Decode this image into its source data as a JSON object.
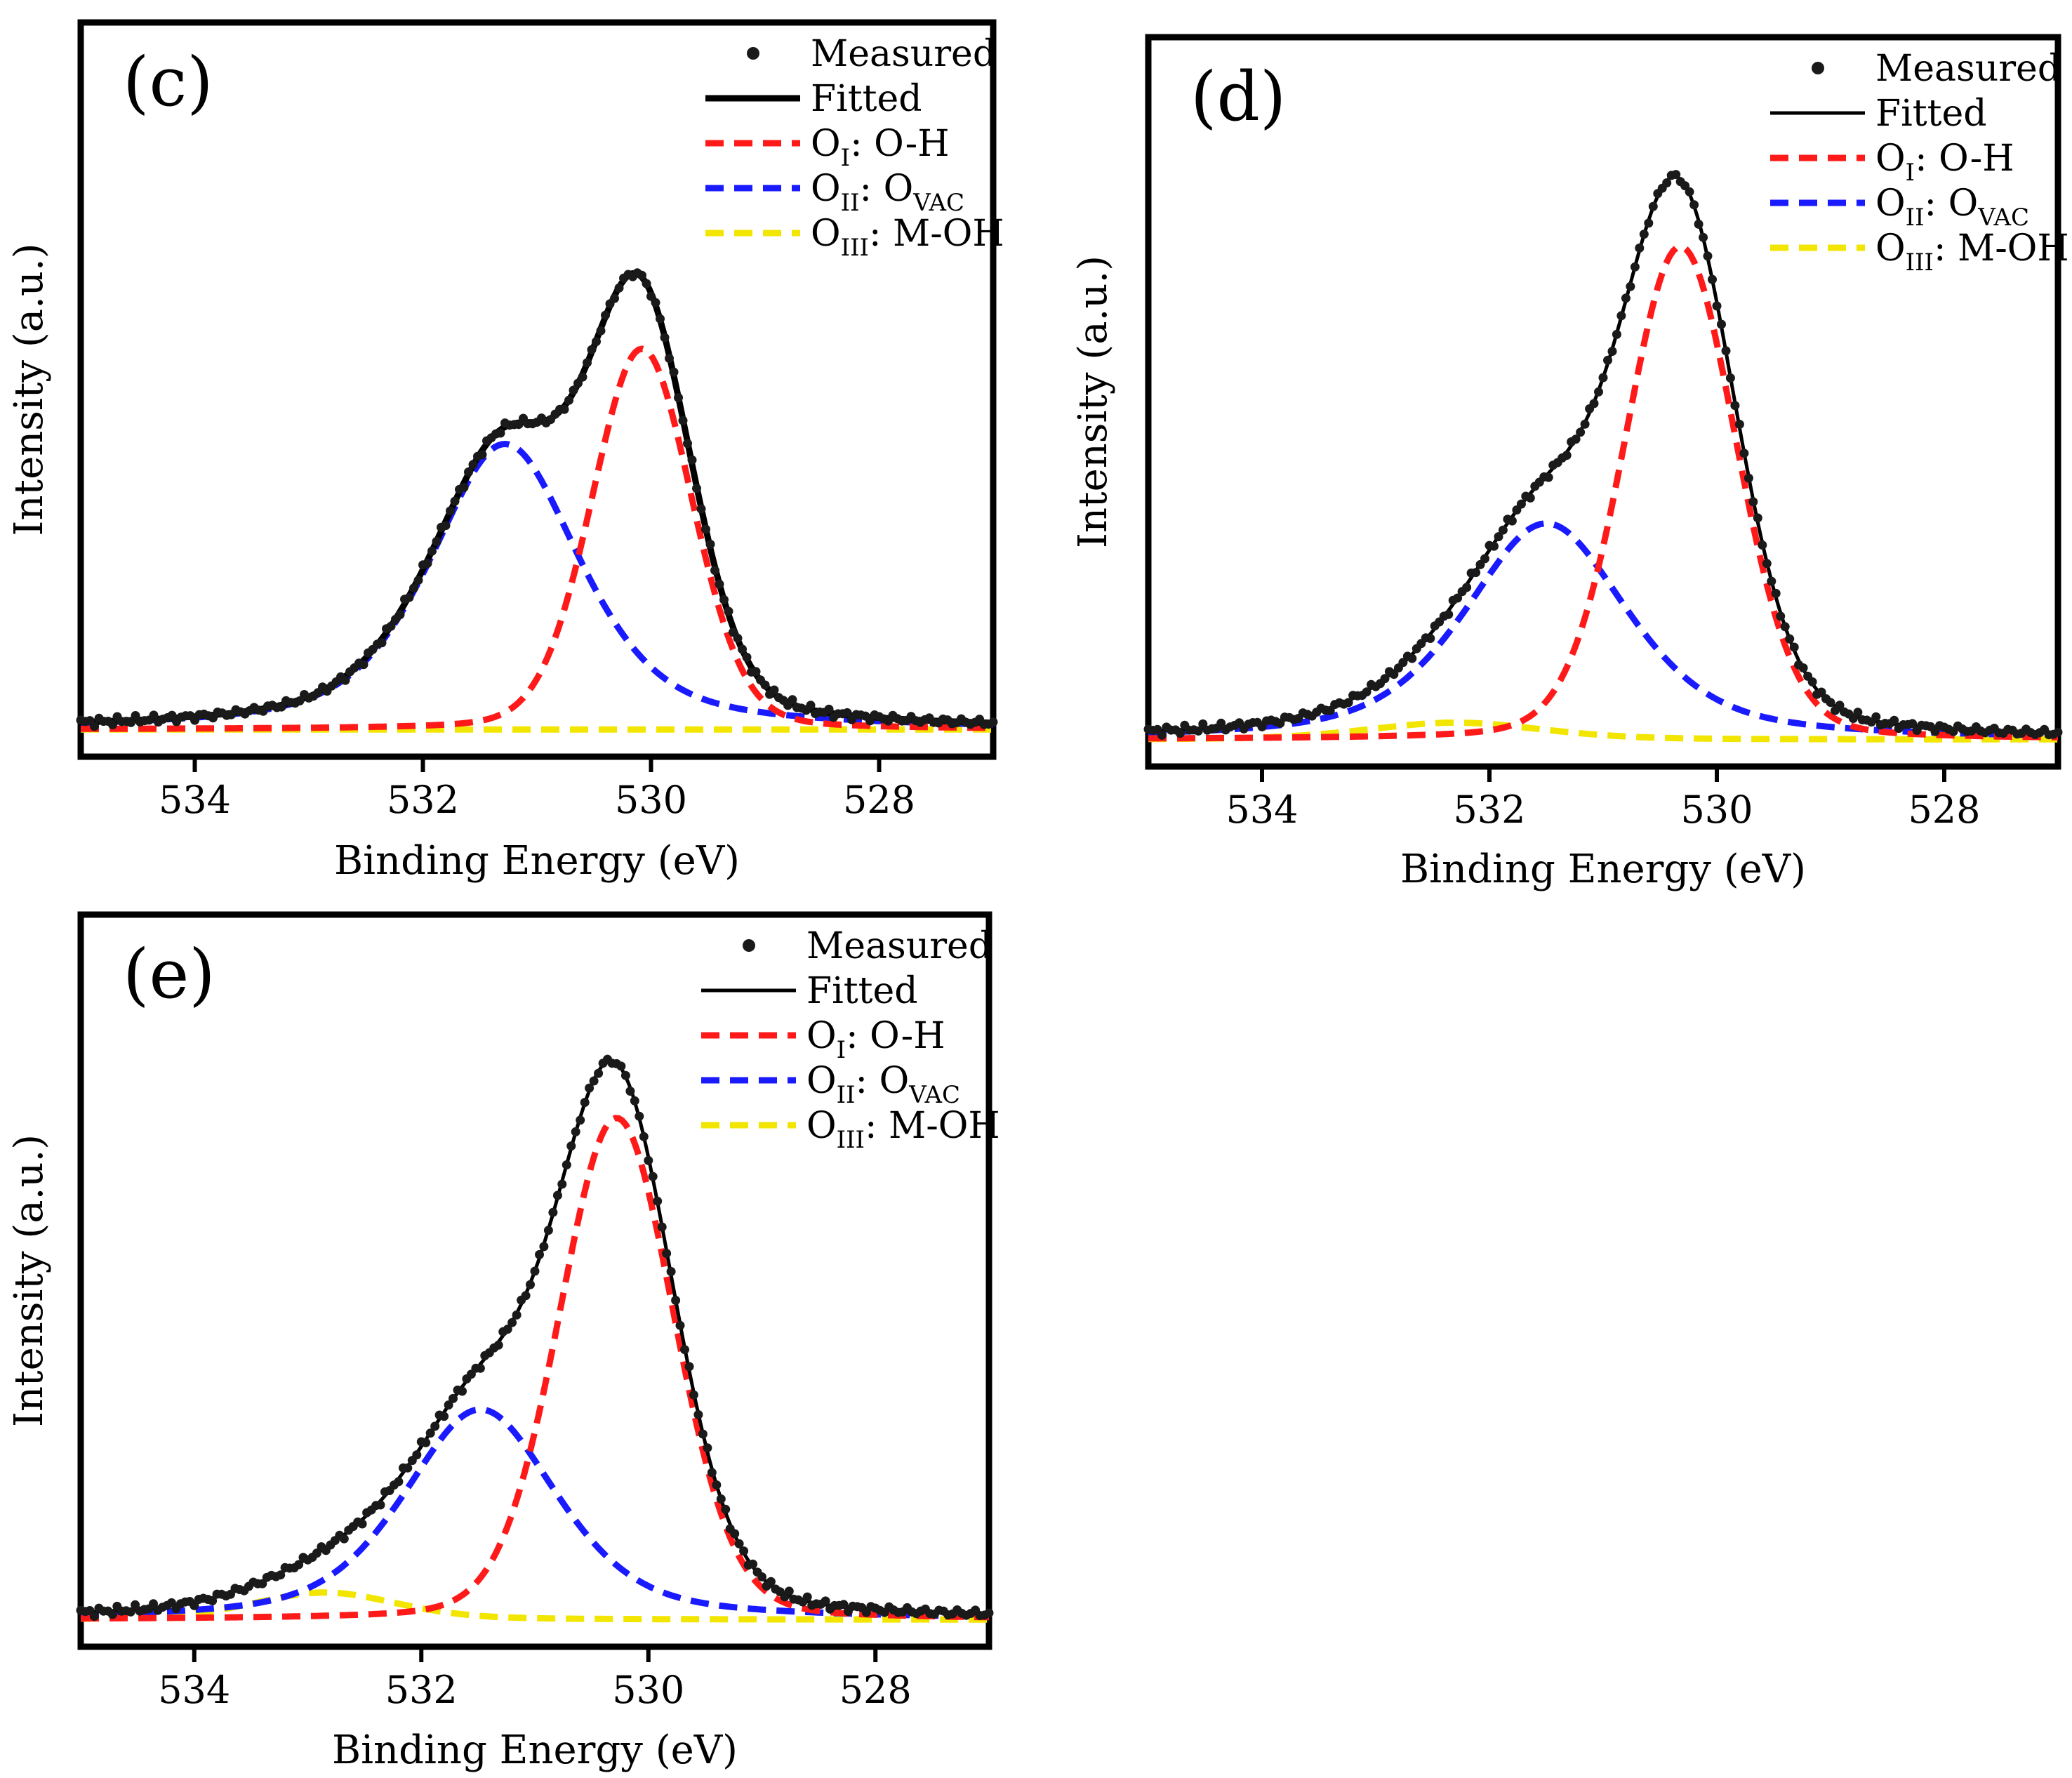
{
  "colors": {
    "measured": "#1a1a1a",
    "fitted": "#000000",
    "oi": "#ff1a1a",
    "oii": "#1a1aff",
    "oiii": "#f2e600",
    "frame": "#000000"
  },
  "chart_data": [
    {
      "type": "line",
      "panel_label": "(c)",
      "xlabel": "Binding Energy (eV)",
      "ylabel": "Intensity (a.u.)",
      "xlim": [
        535.0,
        527.0
      ],
      "xticks": [
        534,
        532,
        530,
        528
      ],
      "xtick_labels": [
        "534",
        "532",
        "530",
        "528"
      ],
      "ylim": [
        0,
        1.08
      ],
      "baseline": 0.04,
      "legend_position": "top-right",
      "legend": [
        {
          "symbol": "dot",
          "label": "Measured"
        },
        {
          "symbol": "line",
          "label": "Fitted"
        },
        {
          "symbol": "dash-red",
          "main": "O",
          "sub": "I",
          "tail": ":  O-H"
        },
        {
          "symbol": "dash-blue",
          "main": "O",
          "sub": "II",
          "tail": ":  O",
          "sub2": "VAC"
        },
        {
          "symbol": "dash-yellow",
          "main": "O",
          "sub": "III",
          "tail": ":  M-OH"
        }
      ],
      "components": [
        {
          "name": "O_I: O-H",
          "center": 530.08,
          "height": 0.56,
          "width": 0.52,
          "shape": 0.15
        },
        {
          "name": "O_II: O_VAC",
          "center": 531.28,
          "height": 0.42,
          "width": 0.78,
          "shape": 0.55
        },
        {
          "name": "O_III: M-OH",
          "center": 532.5,
          "height": 0.0,
          "width": 1.2,
          "shape": 0.0
        }
      ]
    },
    {
      "type": "line",
      "panel_label": "(d)",
      "xlabel": "Binding Energy (eV)",
      "ylabel": "Intensity (a.u.)",
      "xlim": [
        535.0,
        527.0
      ],
      "xticks": [
        534,
        532,
        530,
        528
      ],
      "xtick_labels": [
        "534",
        "532",
        "530",
        "528"
      ],
      "ylim": [
        0,
        1.08
      ],
      "baseline": 0.04,
      "legend_position": "top-right",
      "legend": [
        {
          "symbol": "dot",
          "label": "Measured"
        },
        {
          "symbol": "line",
          "label": "Fitted"
        },
        {
          "symbol": "dash-red",
          "main": "O",
          "sub": "I",
          "tail": ":  O-H"
        },
        {
          "symbol": "dash-blue",
          "main": "O",
          "sub": "II",
          "tail": ":  O",
          "sub2": "VAC"
        },
        {
          "symbol": "dash-yellow",
          "main": "O",
          "sub": "III",
          "tail": ":  M-OH"
        }
      ],
      "components": [
        {
          "name": "O_I: O-H",
          "center": 530.32,
          "height": 0.73,
          "width": 0.58,
          "shape": 0.15
        },
        {
          "name": "O_II: O_VAC",
          "center": 531.5,
          "height": 0.32,
          "width": 0.85,
          "shape": 0.55
        },
        {
          "name": "O_III: M-OH",
          "center": 532.3,
          "height": 0.025,
          "width": 0.9,
          "shape": 0.3
        }
      ]
    },
    {
      "type": "line",
      "panel_label": "(e)",
      "xlabel": "Binding Energy (eV)",
      "ylabel": "Intensity (a.u.)",
      "xlim": [
        535.0,
        527.0
      ],
      "xticks": [
        534,
        532,
        530,
        528
      ],
      "xtick_labels": [
        "534",
        "532",
        "530",
        "528"
      ],
      "ylim": [
        0,
        1.08
      ],
      "baseline": 0.04,
      "legend_position": "top-right",
      "legend": [
        {
          "symbol": "dot",
          "label": "Measured"
        },
        {
          "symbol": "line",
          "label": "Fitted"
        },
        {
          "symbol": "dash-red",
          "main": "O",
          "sub": "I",
          "tail": ":  O-H"
        },
        {
          "symbol": "dash-blue",
          "main": "O",
          "sub": "II",
          "tail": ":  O",
          "sub2": "VAC"
        },
        {
          "symbol": "dash-yellow",
          "main": "O",
          "sub": "III",
          "tail": ":  M-OH"
        }
      ],
      "components": [
        {
          "name": "O_I: O-H",
          "center": 530.28,
          "height": 0.74,
          "width": 0.6,
          "shape": 0.15
        },
        {
          "name": "O_II: O_VAC",
          "center": 531.48,
          "height": 0.31,
          "width": 0.8,
          "shape": 0.5
        },
        {
          "name": "O_III: M-OH",
          "center": 532.85,
          "height": 0.04,
          "width": 0.75,
          "shape": 0.3
        }
      ]
    }
  ]
}
